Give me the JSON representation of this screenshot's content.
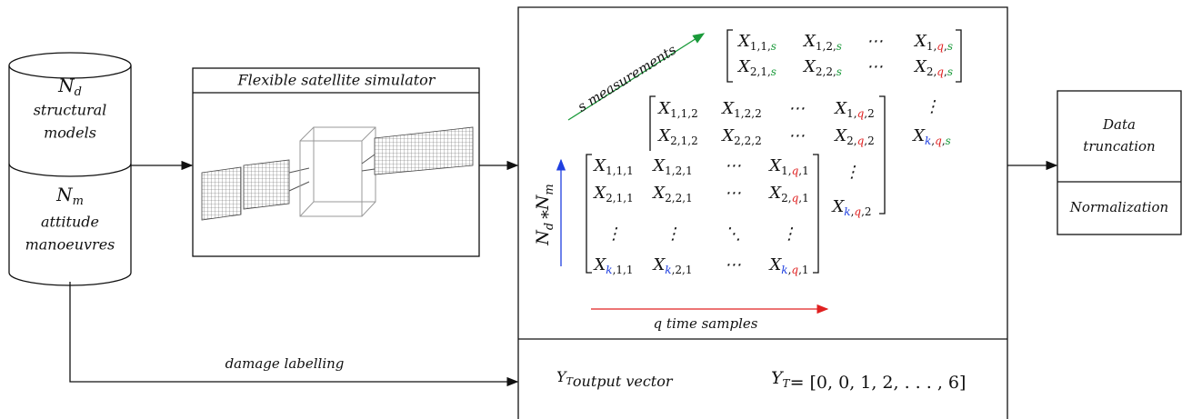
{
  "database": {
    "n_d": {
      "base": "N",
      "sub": "d"
    },
    "label_1": [
      "structural",
      "models"
    ],
    "n_m": {
      "base": "N",
      "sub": "m"
    },
    "label_2": [
      "attitude",
      "manoeuvres"
    ]
  },
  "simulator": {
    "title": "Flexible satellite simulator"
  },
  "damage_label": "damage labelling",
  "tensor": {
    "colors": {
      "k": "#1f3fe0",
      "q": "#e02020",
      "s": "#1a9a3a"
    },
    "separator": ",",
    "matrices": [
      {
        "rows": [
          [
            {
              "b": "X",
              "s": [
                "1",
                "1",
                "s"
              ]
            },
            {
              "b": "X",
              "s": [
                "1",
                "2",
                "s"
              ]
            },
            "⋯",
            {
              "b": "X",
              "s": [
                "1",
                "q",
                "s"
              ]
            }
          ],
          [
            {
              "b": "X",
              "s": [
                "2",
                "1",
                "s"
              ]
            },
            {
              "b": "X",
              "s": [
                "2",
                "2",
                "s"
              ]
            },
            "⋯",
            {
              "b": "X",
              "s": [
                "2",
                "q",
                "s"
              ]
            }
          ]
        ],
        "tail": [
          "⋮",
          {
            "b": "X",
            "s": [
              "k",
              "q",
              "s"
            ]
          }
        ]
      },
      {
        "rows": [
          [
            {
              "b": "X",
              "s": [
                "1",
                "1",
                "2"
              ]
            },
            {
              "b": "X",
              "s": [
                "1",
                "2",
                "2"
              ]
            },
            "⋯",
            {
              "b": "X",
              "s": [
                "1",
                "q",
                "2"
              ]
            }
          ],
          [
            {
              "b": "X",
              "s": [
                "2",
                "1",
                "2"
              ]
            },
            {
              "b": "X",
              "s": [
                "2",
                "2",
                "2"
              ]
            },
            "⋯",
            {
              "b": "X",
              "s": [
                "2",
                "q",
                "2"
              ]
            }
          ]
        ],
        "tail": [
          "⋮",
          {
            "b": "X",
            "s": [
              "k",
              "q",
              "2"
            ]
          }
        ]
      },
      {
        "rows": [
          [
            {
              "b": "X",
              "s": [
                "1",
                "1",
                "1"
              ]
            },
            {
              "b": "X",
              "s": [
                "1",
                "2",
                "1"
              ]
            },
            "⋯",
            {
              "b": "X",
              "s": [
                "1",
                "q",
                "1"
              ]
            }
          ],
          [
            {
              "b": "X",
              "s": [
                "2",
                "1",
                "1"
              ]
            },
            {
              "b": "X",
              "s": [
                "2",
                "2",
                "1"
              ]
            },
            "⋯",
            {
              "b": "X",
              "s": [
                "2",
                "q",
                "1"
              ]
            }
          ],
          [
            "⋮",
            "⋮",
            "⋱",
            "⋮"
          ],
          [
            {
              "b": "X",
              "s": [
                "k",
                "1",
                "1"
              ]
            },
            {
              "b": "X",
              "s": [
                "k",
                "2",
                "1"
              ]
            },
            "⋯",
            {
              "b": "X",
              "s": [
                "k",
                "q",
                "1"
              ]
            }
          ]
        ],
        "tail": []
      }
    ],
    "s_axis": "s measurements",
    "n_axis": {
      "a": {
        "base": "N",
        "sub": "d"
      },
      "op": "*",
      "b": {
        "base": "N",
        "sub": "m"
      }
    },
    "q_axis": "q time samples"
  },
  "output": {
    "label": {
      "base": "Y",
      "sub": "T",
      "text": "output vector"
    },
    "equation": {
      "base": "Y",
      "sub": "T",
      "rhs": "= [0, 0, 1, 2, . . . , 6]"
    }
  },
  "preprocessing": {
    "steps": [
      [
        "Data",
        "truncation"
      ],
      [
        "Normalization"
      ]
    ]
  }
}
